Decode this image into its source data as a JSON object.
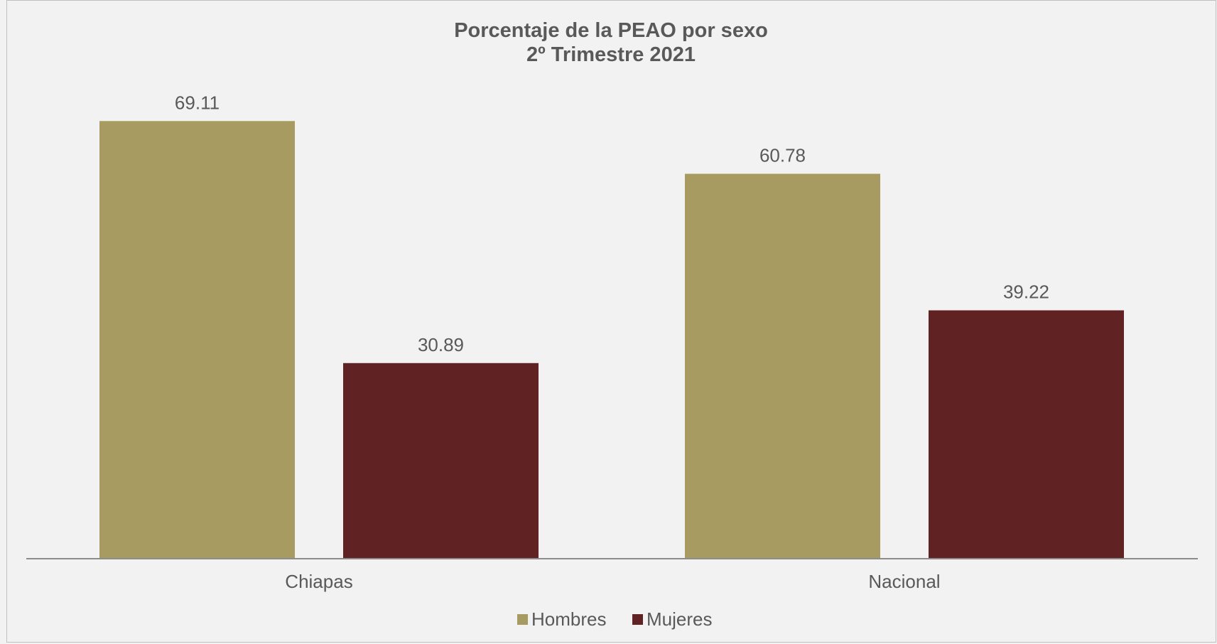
{
  "chart_data": {
    "type": "bar",
    "title": "Porcentaje de la PEAO por sexo",
    "subtitle": "2º Trimestre 2021",
    "categories": [
      "Chiapas",
      "Nacional"
    ],
    "series": [
      {
        "name": "Hombres",
        "color": "#a89b62",
        "values": [
          69.11,
          60.78
        ]
      },
      {
        "name": "Mujeres",
        "color": "#612224",
        "values": [
          30.89,
          39.22
        ]
      }
    ],
    "data_labels": [
      [
        "69.11",
        "60.78"
      ],
      [
        "30.89",
        "39.22"
      ]
    ],
    "xlabel": "",
    "ylabel": "",
    "ylim": [
      0,
      77
    ],
    "grid": false,
    "legend_position": "bottom-center"
  }
}
